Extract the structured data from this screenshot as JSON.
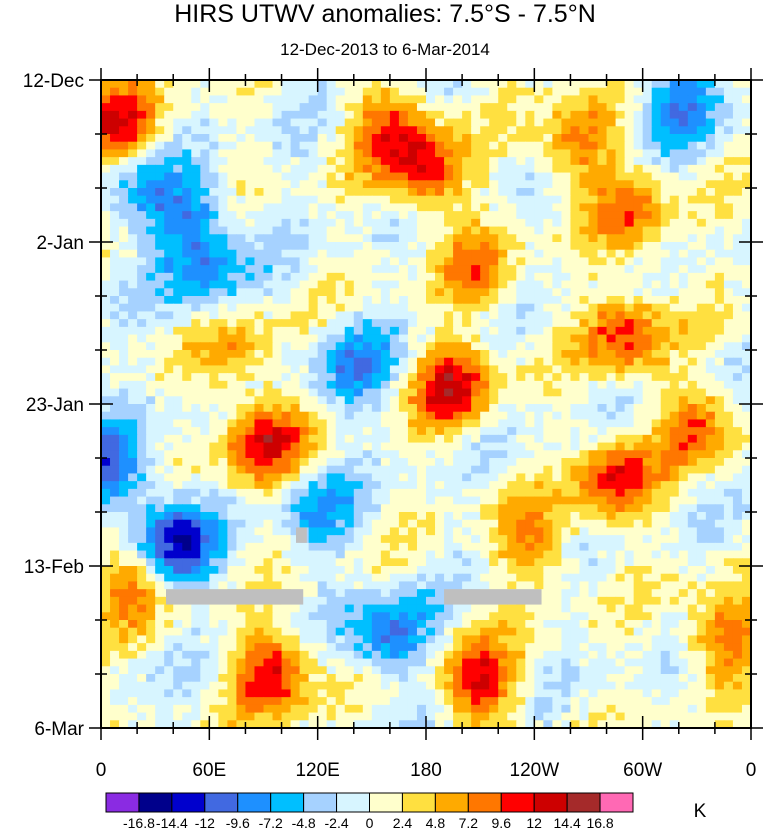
{
  "chart_data": {
    "type": "heatmap",
    "title": "HIRS UTWV anomalies: 7.5°S - 7.5°N",
    "subtitle": "12-Dec-2013 to 6-Mar-2014",
    "x_ticks": [
      "0",
      "60E",
      "120E",
      "180",
      "120W",
      "60W",
      "0"
    ],
    "x_tick_values": [
      0,
      60,
      120,
      180,
      240,
      300,
      360
    ],
    "y_ticks": [
      "12-Dec",
      "2-Jan",
      "23-Jan",
      "13-Feb",
      "6-Mar"
    ],
    "y_tick_days": [
      0,
      21,
      42,
      63,
      84
    ],
    "xlim": [
      0,
      360
    ],
    "ylim_days": [
      0,
      84
    ],
    "colorbar": {
      "labels": [
        "-16.8",
        "-14.4",
        "-12",
        "-9.6",
        "-7.2",
        "-4.8",
        "-2.4",
        "0",
        "2.4",
        "4.8",
        "7.2",
        "9.6",
        "12",
        "14.4",
        "16.8"
      ],
      "colors": [
        "#8a2be2",
        "#00008b",
        "#0000cd",
        "#4169e1",
        "#1e90ff",
        "#00bfff",
        "#a6d2ff",
        "#d7f5ff",
        "#ffffcc",
        "#ffe040",
        "#ffaa00",
        "#ff7700",
        "#ff0000",
        "#cd0000",
        "#a52a2a",
        "#ff69b4"
      ],
      "units": "K"
    },
    "anomaly_features": [
      {
        "lon": 10,
        "day": 6,
        "value": 11
      },
      {
        "lon": 160,
        "day": 6,
        "value": 8
      },
      {
        "lon": 180,
        "day": 12,
        "value": 11
      },
      {
        "lon": 20,
        "day": 14,
        "value": -6
      },
      {
        "lon": 50,
        "day": 18,
        "value": -9
      },
      {
        "lon": 265,
        "day": 8,
        "value": 9
      },
      {
        "lon": 320,
        "day": 3,
        "value": -8
      },
      {
        "lon": 295,
        "day": 18,
        "value": 8
      },
      {
        "lon": 210,
        "day": 25,
        "value": 7
      },
      {
        "lon": 290,
        "day": 33,
        "value": 10
      },
      {
        "lon": 195,
        "day": 40,
        "value": 12
      },
      {
        "lon": 140,
        "day": 37,
        "value": -8
      },
      {
        "lon": 90,
        "day": 47,
        "value": 12
      },
      {
        "lon": 5,
        "day": 50,
        "value": -10
      },
      {
        "lon": 285,
        "day": 52,
        "value": 11
      },
      {
        "lon": 40,
        "day": 60,
        "value": -14
      },
      {
        "lon": 95,
        "day": 77,
        "value": 12
      },
      {
        "lon": 210,
        "day": 78,
        "value": 11
      },
      {
        "lon": 160,
        "day": 72,
        "value": -10
      },
      {
        "lon": 345,
        "day": 72,
        "value": 9
      },
      {
        "lon": 330,
        "day": 45,
        "value": 8
      },
      {
        "lon": 75,
        "day": 35,
        "value": 6
      },
      {
        "lon": 240,
        "day": 60,
        "value": 7
      },
      {
        "lon": 120,
        "day": 56,
        "value": -6
      },
      {
        "lon": 60,
        "day": 26,
        "value": -7
      },
      {
        "lon": 15,
        "day": 65,
        "value": 8
      }
    ],
    "missing_data": [
      {
        "lon_start": 36,
        "lon_end": 112,
        "day_start": 66,
        "day_end": 68
      },
      {
        "lon_start": 108,
        "lon_end": 114,
        "day_start": 58,
        "day_end": 60
      },
      {
        "lon_start": 190,
        "lon_end": 244,
        "day_start": 66,
        "day_end": 68
      }
    ]
  }
}
